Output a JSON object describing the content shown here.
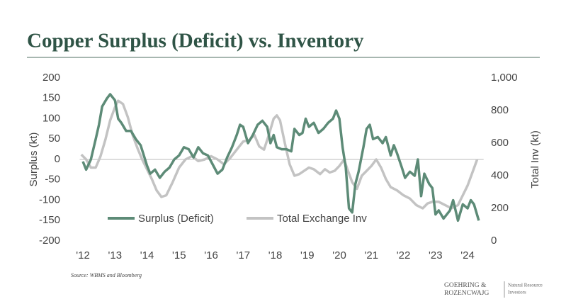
{
  "chart_data": {
    "type": "line",
    "title": "Copper Surplus (Deficit) vs. Inventory",
    "ylabel": "Surplus (kt)",
    "y2label": "Total Inv (kt)",
    "source": "Source: WBMS and Bloomberg",
    "logo": {
      "name_line1": "GOEHRING &",
      "name_line2": "ROZENCWAJG",
      "tag_line1": "Natural Resource",
      "tag_line2": "Investors"
    },
    "xlim": [
      2011.9,
      2024.5
    ],
    "xticks": [
      {
        "value": 2012,
        "label": "'12"
      },
      {
        "value": 2013,
        "label": "'13"
      },
      {
        "value": 2014,
        "label": "'14"
      },
      {
        "value": 2015,
        "label": "'15"
      },
      {
        "value": 2016,
        "label": "'16"
      },
      {
        "value": 2017,
        "label": "'17"
      },
      {
        "value": 2018,
        "label": "'18"
      },
      {
        "value": 2019,
        "label": "'19"
      },
      {
        "value": 2020,
        "label": "'20"
      },
      {
        "value": 2021,
        "label": "'21"
      },
      {
        "value": 2022,
        "label": "'22"
      },
      {
        "value": 2023,
        "label": "'23"
      },
      {
        "value": 2024,
        "label": "'24"
      }
    ],
    "ylim": [
      -200,
      200
    ],
    "yticks": [
      -200,
      -150,
      -100,
      -50,
      0,
      50,
      100,
      150,
      200
    ],
    "y2lim": [
      0,
      1000
    ],
    "y2ticks": [
      0,
      200,
      400,
      600,
      800,
      {
        "value": 1000,
        "label": "1,000"
      }
    ],
    "series": [
      {
        "name": "Surplus (Deficit)",
        "color": "#5d8b77",
        "axis": "y",
        "x": [
          2012.0,
          2012.1,
          2012.25,
          2012.4,
          2012.5,
          2012.6,
          2012.75,
          2012.85,
          2013.0,
          2013.1,
          2013.2,
          2013.35,
          2013.5,
          2013.65,
          2013.8,
          2014.0,
          2014.1,
          2014.25,
          2014.4,
          2014.55,
          2014.7,
          2014.85,
          2015.0,
          2015.15,
          2015.3,
          2015.45,
          2015.6,
          2015.75,
          2015.9,
          2016.1,
          2016.2,
          2016.35,
          2016.5,
          2016.65,
          2016.8,
          2016.9,
          2017.0,
          2017.15,
          2017.3,
          2017.45,
          2017.6,
          2017.75,
          2017.85,
          2017.95,
          2018.05,
          2018.2,
          2018.35,
          2018.5,
          2018.6,
          2018.75,
          2018.85,
          2018.95,
          2019.05,
          2019.2,
          2019.35,
          2019.5,
          2019.65,
          2019.8,
          2019.9,
          2020.0,
          2020.1,
          2020.2,
          2020.3,
          2020.4,
          2020.5,
          2020.6,
          2020.75,
          2020.85,
          2020.95,
          2021.05,
          2021.2,
          2021.35,
          2021.45,
          2021.6,
          2021.7,
          2021.8,
          2021.95,
          2022.05,
          2022.2,
          2022.35,
          2022.45,
          2022.55,
          2022.65,
          2022.8,
          2022.9,
          2023.0,
          2023.1,
          2023.25,
          2023.45,
          2023.55,
          2023.7,
          2023.85,
          2024.0,
          2024.1,
          2024.2,
          2024.35
        ],
        "values": [
          -5,
          -25,
          0,
          50,
          85,
          130,
          150,
          160,
          145,
          100,
          90,
          70,
          70,
          50,
          35,
          -15,
          -35,
          -25,
          -45,
          -30,
          -20,
          0,
          10,
          30,
          25,
          5,
          30,
          15,
          10,
          -20,
          -35,
          -25,
          5,
          30,
          60,
          85,
          80,
          40,
          60,
          85,
          95,
          80,
          40,
          60,
          30,
          25,
          25,
          20,
          75,
          60,
          65,
          100,
          80,
          90,
          65,
          75,
          90,
          100,
          120,
          100,
          30,
          -20,
          -120,
          -130,
          -60,
          -30,
          30,
          75,
          85,
          50,
          55,
          40,
          55,
          10,
          35,
          15,
          -20,
          -45,
          -30,
          -40,
          0,
          -90,
          -35,
          -60,
          -70,
          -135,
          -125,
          -145,
          -125,
          -100,
          -150,
          -110,
          -120,
          -100,
          -110,
          -150
        ]
      },
      {
        "name": "Total Exchange Inv",
        "color": "#c3c3c3",
        "axis": "y2",
        "x": [
          2011.95,
          2012.1,
          2012.25,
          2012.4,
          2012.55,
          2012.7,
          2012.85,
          2013.0,
          2013.1,
          2013.25,
          2013.4,
          2013.55,
          2013.7,
          2013.85,
          2014.0,
          2014.15,
          2014.3,
          2014.45,
          2014.6,
          2014.8,
          2015.0,
          2015.2,
          2015.4,
          2015.6,
          2015.8,
          2016.0,
          2016.2,
          2016.4,
          2016.6,
          2016.8,
          2017.0,
          2017.2,
          2017.35,
          2017.5,
          2017.65,
          2017.8,
          2017.95,
          2018.05,
          2018.15,
          2018.3,
          2018.45,
          2018.6,
          2018.75,
          2018.9,
          2019.05,
          2019.2,
          2019.4,
          2019.55,
          2019.7,
          2019.85,
          2020.0,
          2020.15,
          2020.25,
          2020.4,
          2020.55,
          2020.7,
          2020.85,
          2021.0,
          2021.15,
          2021.3,
          2021.45,
          2021.6,
          2021.8,
          2022.0,
          2022.2,
          2022.4,
          2022.6,
          2022.75,
          2022.9,
          2023.1,
          2023.3,
          2023.5,
          2023.7,
          2023.85,
          2024.0,
          2024.15,
          2024.3
        ],
        "values": [
          530,
          500,
          450,
          450,
          520,
          620,
          740,
          820,
          860,
          840,
          760,
          650,
          570,
          500,
          440,
          380,
          310,
          270,
          280,
          360,
          450,
          500,
          520,
          490,
          500,
          520,
          500,
          470,
          510,
          560,
          610,
          620,
          650,
          580,
          560,
          650,
          750,
          770,
          740,
          600,
          470,
          400,
          410,
          430,
          450,
          440,
          410,
          440,
          420,
          430,
          460,
          500,
          440,
          360,
          320,
          400,
          430,
          460,
          500,
          450,
          380,
          330,
          310,
          280,
          260,
          220,
          200,
          230,
          240,
          240,
          220,
          200,
          220,
          280,
          340,
          420,
          500
        ]
      }
    ]
  }
}
